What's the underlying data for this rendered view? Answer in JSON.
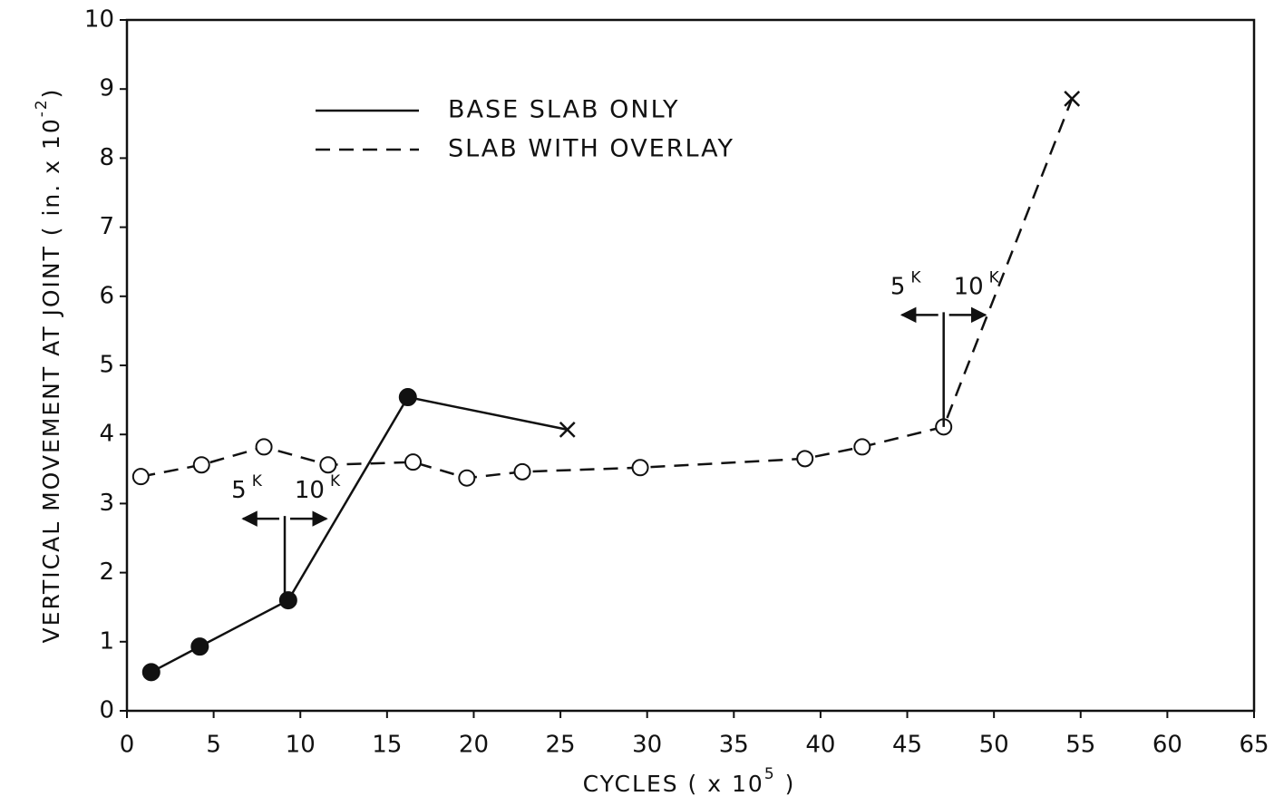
{
  "chart_data": {
    "type": "line",
    "xlabel": {
      "text": "CYCLES  ( x 10",
      "sup": "5",
      "end": " )"
    },
    "ylabel": {
      "text": "VERTICAL  MOVEMENT  AT  JOINT  ( in. x 10",
      "sup": "-2",
      "end": ")"
    },
    "xlim": [
      0,
      65
    ],
    "xticks": [
      0,
      5,
      10,
      15,
      20,
      25,
      30,
      35,
      40,
      45,
      50,
      55,
      60,
      65
    ],
    "ylim": [
      0,
      10
    ],
    "yticks": [
      0,
      1,
      2,
      3,
      4,
      5,
      6,
      7,
      8,
      9,
      10
    ],
    "grid": false,
    "legend": "upper left",
    "series": [
      {
        "name": "BASE SLAB ONLY",
        "color": "#111111",
        "dash": "solid",
        "marker": "filled-circle",
        "end_marker": "x",
        "x": [
          1.4,
          4.2,
          9.3,
          16.2,
          25.4
        ],
        "values": [
          0.56,
          0.93,
          1.6,
          4.54,
          4.07
        ]
      },
      {
        "name": "SLAB WITH OVERLAY",
        "color": "#111111",
        "dash": "dashed",
        "marker": "open-circle",
        "end_marker": "x",
        "x": [
          0.8,
          4.3,
          7.9,
          11.6,
          16.5,
          19.6,
          22.8,
          29.6,
          39.1,
          42.4,
          47.1,
          54.5
        ],
        "values": [
          3.39,
          3.56,
          3.82,
          3.56,
          3.6,
          3.37,
          3.46,
          3.52,
          3.65,
          3.82,
          4.11,
          8.86
        ]
      }
    ],
    "annotations": [
      {
        "x": 9.1,
        "y_range": [
          1.6,
          2.82
        ],
        "left": {
          "text": "5",
          "sup": "K"
        },
        "right": {
          "text": "10",
          "sup": "K"
        }
      },
      {
        "x": 47.1,
        "y_range": [
          4.11,
          5.77
        ],
        "left": {
          "text": "5",
          "sup": "K"
        },
        "right": {
          "text": "10",
          "sup": "K"
        }
      }
    ]
  }
}
